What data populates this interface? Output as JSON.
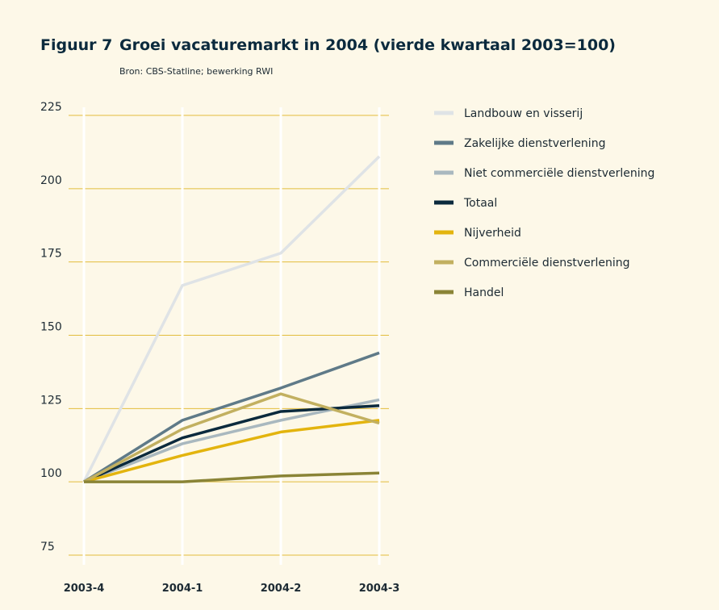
{
  "chart_data": {
    "type": "line",
    "figure_label": "Figuur 7",
    "title": "Groei vacaturemarkt in 2004 (vierde kwartaal 2003=100)",
    "subtitle": "Bron: CBS-Statline; bewerking RWI",
    "categories": [
      "2003-4",
      "2004-1",
      "2004-2",
      "2004-3"
    ],
    "series": [
      {
        "name": "Landbouw en visserij",
        "color": "#dfe3e6",
        "values": [
          100,
          167,
          178,
          211
        ]
      },
      {
        "name": "Zakelijke dienstverlening",
        "color": "#5f7a88",
        "values": [
          100,
          121,
          132,
          144
        ]
      },
      {
        "name": "Niet commerciële dienstverlening",
        "color": "#a9b8bf",
        "values": [
          100,
          113,
          121,
          128
        ]
      },
      {
        "name": "Totaal",
        "color": "#0b2a3d",
        "values": [
          100,
          115,
          124,
          126
        ]
      },
      {
        "name": "Nijverheid",
        "color": "#e3b40e",
        "values": [
          100,
          109,
          117,
          121
        ]
      },
      {
        "name": "Commerciële dienstverlening",
        "color": "#c2b060",
        "values": [
          100,
          118,
          130,
          120
        ]
      },
      {
        "name": "Handel",
        "color": "#8a8436",
        "values": [
          100,
          100,
          102,
          103
        ]
      }
    ],
    "ylim": [
      75,
      225
    ],
    "yticks": [
      75,
      100,
      125,
      150,
      175,
      200,
      225
    ],
    "grid": true,
    "legend": "right"
  }
}
